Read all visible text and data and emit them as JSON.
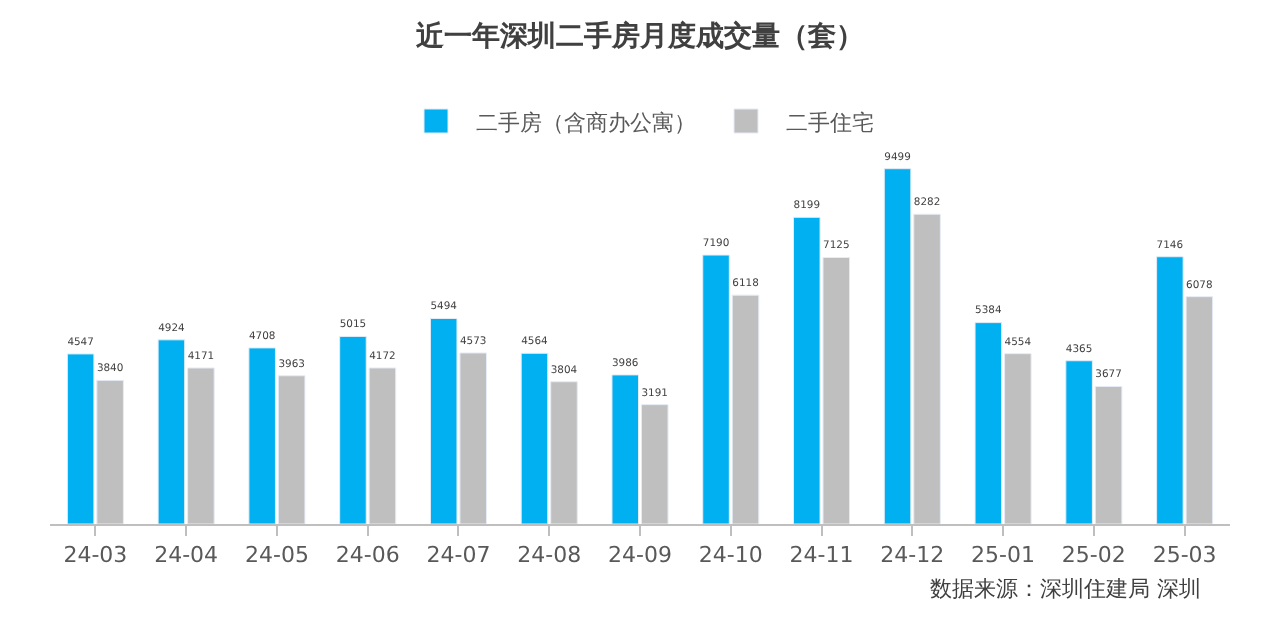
{
  "chart_data": {
    "type": "bar",
    "title": "近一年深圳二手房月度成交量（套）",
    "categories": [
      "24-03",
      "24-04",
      "24-05",
      "24-06",
      "24-07",
      "24-08",
      "24-09",
      "24-10",
      "24-11",
      "24-12",
      "25-01",
      "25-02",
      "25-03"
    ],
    "series": [
      {
        "name": "二手房（含商办公寓）",
        "color": "#00b0f0",
        "values": [
          4547,
          4924,
          4708,
          5015,
          5494,
          4564,
          3986,
          7190,
          8199,
          9499,
          5384,
          4365,
          7146
        ]
      },
      {
        "name": "二手住宅",
        "color": "#bfbfbf",
        "values": [
          3840,
          4171,
          3963,
          4172,
          4573,
          3804,
          3191,
          6118,
          7125,
          8282,
          4554,
          3677,
          6078
        ]
      }
    ],
    "data_labels": true,
    "legend": "top",
    "annotations": [
      "数据来源：深圳住建局 深圳"
    ]
  }
}
